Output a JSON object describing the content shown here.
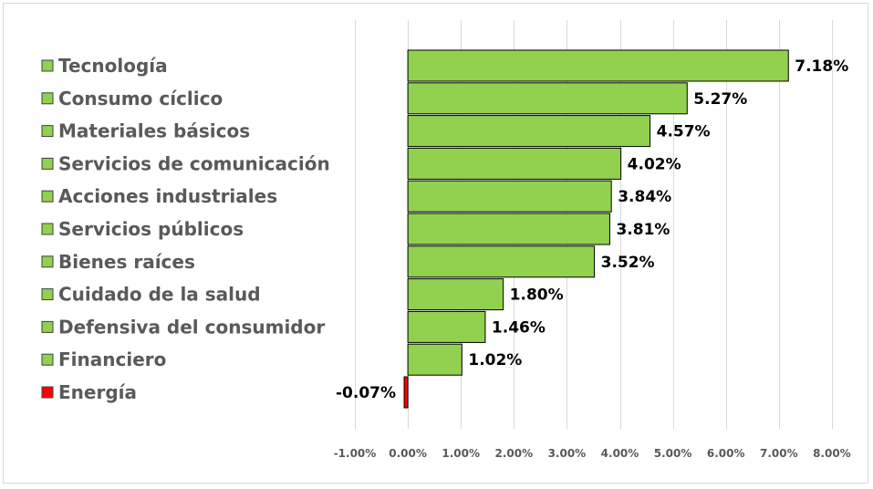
{
  "chart_data": {
    "type": "bar",
    "orientation": "horizontal",
    "categories": [
      "Tecnología",
      "Consumo cíclico",
      "Materiales básicos",
      "Servicios de comunicación",
      "Acciones industriales",
      "Servicios públicos",
      "Bienes raíces",
      "Cuidado de la salud",
      "Defensiva del consumidor",
      "Financiero",
      "Energía"
    ],
    "values": [
      7.18,
      5.27,
      4.57,
      4.02,
      3.84,
      3.81,
      3.52,
      1.8,
      1.46,
      1.02,
      -0.07
    ],
    "value_labels": [
      "7.18%",
      "5.27%",
      "4.57%",
      "4.02%",
      "3.84%",
      "3.81%",
      "3.52%",
      "1.80%",
      "1.46%",
      "1.02%",
      "-0.07%"
    ],
    "bar_colors": [
      "#92d050",
      "#92d050",
      "#92d050",
      "#92d050",
      "#92d050",
      "#92d050",
      "#92d050",
      "#92d050",
      "#92d050",
      "#92d050",
      "#ff0000"
    ],
    "xlim": [
      -1,
      8
    ],
    "x_ticks": [
      -1,
      0,
      1,
      2,
      3,
      4,
      5,
      6,
      7,
      8
    ],
    "x_tick_labels": [
      "-1.00%",
      "0.00%",
      "1.00%",
      "2.00%",
      "3.00%",
      "4.00%",
      "5.00%",
      "6.00%",
      "7.00%",
      "8.00%"
    ],
    "title": "",
    "xlabel": "",
    "ylabel": "",
    "grid": "vertical",
    "legend_placement": "left",
    "colors": {
      "positive": "#92d050",
      "negative": "#ff0000",
      "gridline": "#d9d9d9",
      "bar_outline": "#000000"
    }
  }
}
